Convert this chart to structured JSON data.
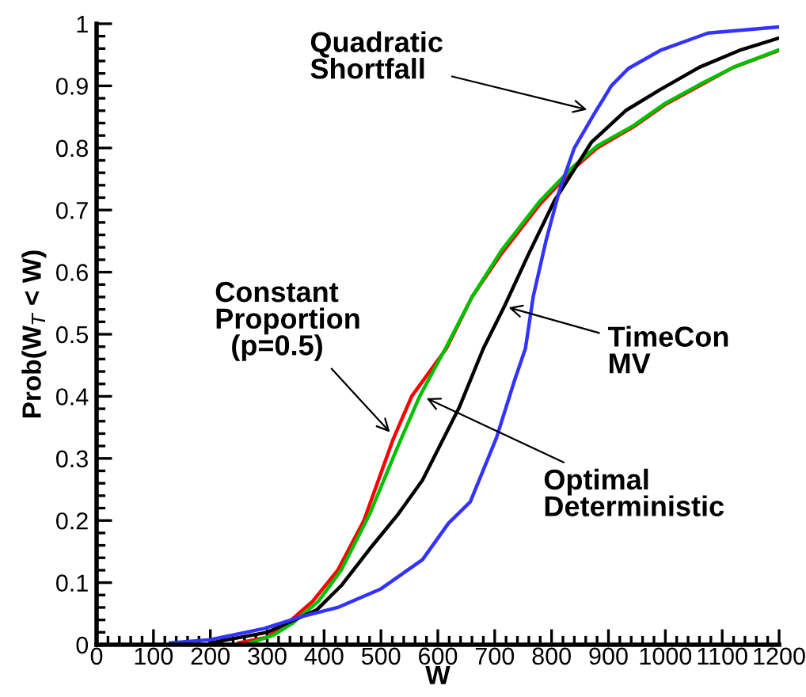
{
  "chart_data": {
    "type": "line",
    "xlabel": "W",
    "ylabel": "Prob(W$_{T}$ < W)",
    "xlim": [
      0,
      1200
    ],
    "ylim": [
      0,
      1
    ],
    "xticks": [
      0,
      100,
      200,
      300,
      400,
      500,
      600,
      700,
      800,
      900,
      1000,
      1100,
      1200
    ],
    "yticks": [
      0,
      0.1,
      0.2,
      0.3,
      0.4,
      0.5,
      0.6,
      0.7,
      0.8,
      0.9,
      1
    ],
    "grid": false,
    "legend": false,
    "series": [
      {
        "color": "#ff0000",
        "x": [
          250,
          300,
          336,
          380,
          424,
          470,
          521,
          554,
          615,
          660,
          712,
          780,
          838,
          880,
          944,
          1000,
          1060,
          1120,
          1200
        ],
        "values": [
          0.003,
          0.012,
          0.035,
          0.07,
          0.12,
          0.2,
          0.33,
          0.4,
          0.477,
          0.56,
          0.63,
          0.71,
          0.766,
          0.8,
          0.834,
          0.87,
          0.9,
          0.93,
          0.957
        ]
      },
      {
        "color": "#00c000",
        "x": [
          270,
          310,
          345,
          390,
          430,
          480,
          530,
          568,
          615,
          660,
          712,
          780,
          838,
          880,
          944,
          1000,
          1060,
          1120,
          1200
        ],
        "values": [
          0.003,
          0.015,
          0.035,
          0.07,
          0.12,
          0.21,
          0.32,
          0.4,
          0.48,
          0.56,
          0.635,
          0.715,
          0.77,
          0.803,
          0.836,
          0.872,
          0.902,
          0.93,
          0.958
        ]
      },
      {
        "color": "#000000",
        "x": [
          200,
          300,
          387,
          430,
          480,
          530,
          573,
          638,
          680,
          717,
          760,
          805,
          870,
          930,
          991,
          1060,
          1130,
          1200
        ],
        "values": [
          0.003,
          0.02,
          0.056,
          0.095,
          0.154,
          0.21,
          0.265,
          0.383,
          0.477,
          0.545,
          0.63,
          0.715,
          0.809,
          0.86,
          0.894,
          0.93,
          0.957,
          0.977
        ]
      },
      {
        "color": "#3333ff",
        "x": [
          130,
          200,
          294,
          360,
          424,
          500,
          573,
          619,
          657,
          703,
          735,
          754,
          768,
          790,
          814,
          840,
          875,
          905,
          935,
          991,
          1075,
          1200
        ],
        "values": [
          0.003,
          0.008,
          0.026,
          0.045,
          0.06,
          0.09,
          0.137,
          0.196,
          0.23,
          0.333,
          0.426,
          0.477,
          0.562,
          0.65,
          0.732,
          0.8,
          0.855,
          0.9,
          0.928,
          0.957,
          0.985,
          0.995
        ]
      }
    ],
    "annotations": [
      {
        "text": "Quadratic\nShortfall",
        "x": 870,
        "y": 0.86
      },
      {
        "text": "TimeCon\nMV",
        "x": 717,
        "y": 0.545
      },
      {
        "text": "Constant\nProportion\n  (p=0.5)",
        "x": 521,
        "y": 0.337
      },
      {
        "text": "Optimal\nDeterministic",
        "x": 573,
        "y": 0.4
      }
    ]
  }
}
